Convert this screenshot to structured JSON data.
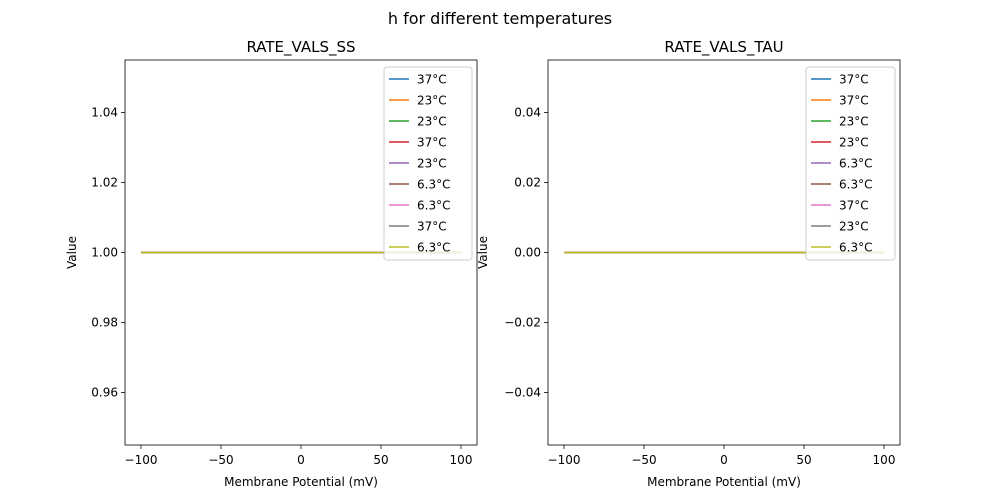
{
  "chart_data": {
    "suptitle": "h for different temperatures",
    "colors": [
      "#1f77b4",
      "#ff7f0e",
      "#2ca02c",
      "#d62728",
      "#9467bd",
      "#8c564b",
      "#e377c2",
      "#7f7f7f",
      "#bcbd22"
    ],
    "panels": [
      {
        "type": "line",
        "title": "RATE_VALS_SS",
        "xlabel": "Membrane Potential (mV)",
        "ylabel": "Value",
        "xlim": [
          -110,
          110
        ],
        "ylim": [
          0.945,
          1.055
        ],
        "xticks": [
          -100,
          -50,
          0,
          50,
          100
        ],
        "xtick_labels": [
          "−100",
          "−50",
          "0",
          "50",
          "100"
        ],
        "yticks": [
          0.96,
          0.98,
          1.0,
          1.02,
          1.04
        ],
        "ytick_labels": [
          "0.96",
          "0.98",
          "1.00",
          "1.02",
          "1.04"
        ],
        "legend_position": "upper-right",
        "series": [
          {
            "name": "37°C",
            "x": [
              -100,
              100
            ],
            "y": [
              1,
              1
            ]
          },
          {
            "name": "23°C",
            "x": [
              -100,
              100
            ],
            "y": [
              1,
              1
            ]
          },
          {
            "name": "23°C",
            "x": [
              -100,
              100
            ],
            "y": [
              1,
              1
            ]
          },
          {
            "name": "37°C",
            "x": [
              -100,
              100
            ],
            "y": [
              1,
              1
            ]
          },
          {
            "name": "23°C",
            "x": [
              -100,
              100
            ],
            "y": [
              1,
              1
            ]
          },
          {
            "name": "6.3°C",
            "x": [
              -100,
              100
            ],
            "y": [
              1,
              1
            ]
          },
          {
            "name": "6.3°C",
            "x": [
              -100,
              100
            ],
            "y": [
              1,
              1
            ]
          },
          {
            "name": "37°C",
            "x": [
              -100,
              100
            ],
            "y": [
              1,
              1
            ]
          },
          {
            "name": "6.3°C",
            "x": [
              -100,
              100
            ],
            "y": [
              1,
              1
            ]
          }
        ]
      },
      {
        "type": "line",
        "title": "RATE_VALS_TAU",
        "xlabel": "Membrane Potential (mV)",
        "ylabel": "Value",
        "xlim": [
          -110,
          110
        ],
        "ylim": [
          -0.055,
          0.055
        ],
        "xticks": [
          -100,
          -50,
          0,
          50,
          100
        ],
        "xtick_labels": [
          "−100",
          "−50",
          "0",
          "50",
          "100"
        ],
        "yticks": [
          -0.04,
          -0.02,
          0.0,
          0.02,
          0.04
        ],
        "ytick_labels": [
          "−0.04",
          "−0.02",
          "0.00",
          "0.02",
          "0.04"
        ],
        "legend_position": "upper-right",
        "series": [
          {
            "name": "37°C",
            "x": [
              -100,
              100
            ],
            "y": [
              0,
              0
            ]
          },
          {
            "name": "37°C",
            "x": [
              -100,
              100
            ],
            "y": [
              0,
              0
            ]
          },
          {
            "name": "23°C",
            "x": [
              -100,
              100
            ],
            "y": [
              0,
              0
            ]
          },
          {
            "name": "23°C",
            "x": [
              -100,
              100
            ],
            "y": [
              0,
              0
            ]
          },
          {
            "name": "6.3°C",
            "x": [
              -100,
              100
            ],
            "y": [
              0,
              0
            ]
          },
          {
            "name": "6.3°C",
            "x": [
              -100,
              100
            ],
            "y": [
              0,
              0
            ]
          },
          {
            "name": "37°C",
            "x": [
              -100,
              100
            ],
            "y": [
              0,
              0
            ]
          },
          {
            "name": "23°C",
            "x": [
              -100,
              100
            ],
            "y": [
              0,
              0
            ]
          },
          {
            "name": "6.3°C",
            "x": [
              -100,
              100
            ],
            "y": [
              0,
              0
            ]
          }
        ]
      }
    ]
  }
}
